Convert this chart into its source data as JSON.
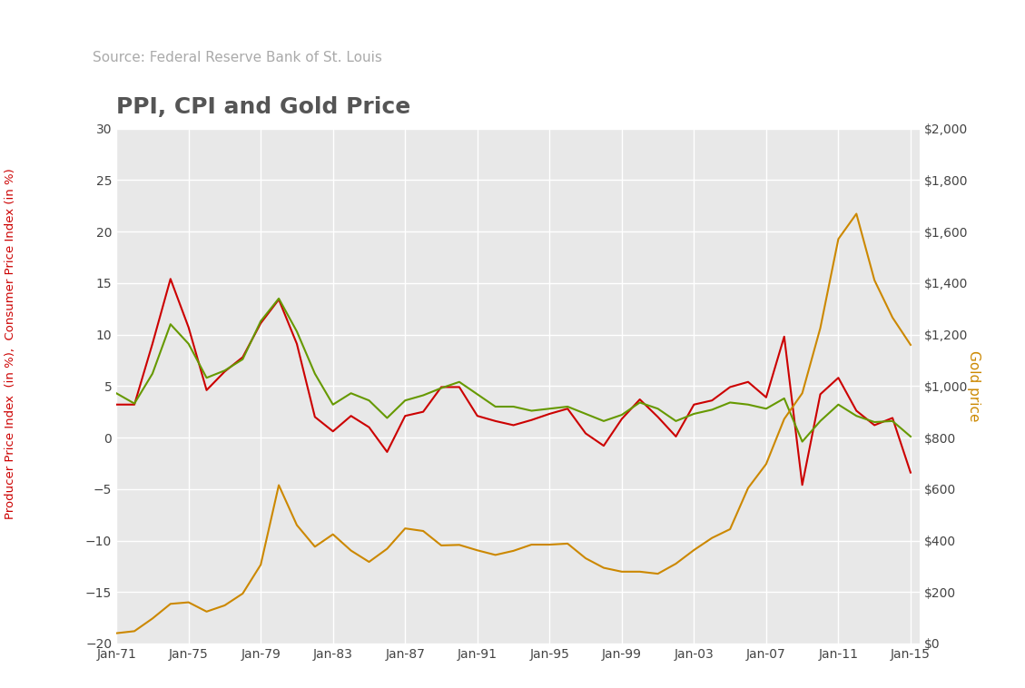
{
  "title": "PPI, CPI and Gold Price",
  "subtitle": "Source: Federal Reserve Bank of St. Louis",
  "ylabel_left": "Producer Price Index  (in %),  Consumer Price Index (in %)",
  "ylabel_right": "Gold price",
  "ylabel_left_color": "#cc0000",
  "ylabel_right_color": "#cc8800",
  "ylim_left": [
    -20,
    30
  ],
  "ylim_right": [
    0,
    2000
  ],
  "yticks_left": [
    -20,
    -15,
    -10,
    -5,
    0,
    5,
    10,
    15,
    20,
    25,
    30
  ],
  "yticks_right": [
    0,
    200,
    400,
    600,
    800,
    1000,
    1200,
    1400,
    1600,
    1800,
    2000
  ],
  "ytick_labels_right": [
    "$0",
    "$200",
    "$400",
    "$600",
    "$800",
    "$1,000",
    "$1,200",
    "$1,400",
    "$1,600",
    "$1,800",
    "$2,000"
  ],
  "xtick_labels": [
    "Jan-71",
    "Jan-75",
    "Jan-79",
    "Jan-83",
    "Jan-87",
    "Jan-91",
    "Jan-95",
    "Jan-99",
    "Jan-03",
    "Jan-07",
    "Jan-11",
    "Jan-15"
  ],
  "ppi_color": "#cc0000",
  "cpi_color": "#669900",
  "gold_color": "#cc8800",
  "background_color": "#e8e8e8",
  "plot_bg_color": "#e8e8e8",
  "title_color": "#555555",
  "subtitle_color": "#888888",
  "grid_color": "#ffffff",
  "years": [
    1971,
    1972,
    1973,
    1974,
    1975,
    1976,
    1977,
    1978,
    1979,
    1980,
    1981,
    1982,
    1983,
    1984,
    1985,
    1986,
    1987,
    1988,
    1989,
    1990,
    1991,
    1992,
    1993,
    1994,
    1995,
    1996,
    1997,
    1998,
    1999,
    2000,
    2001,
    2002,
    2003,
    2004,
    2005,
    2006,
    2007,
    2008,
    2009,
    2010,
    2011,
    2012,
    2013,
    2014,
    2015
  ],
  "ppi_annual": [
    3.2,
    3.2,
    9.1,
    15.4,
    10.7,
    4.6,
    6.4,
    7.8,
    11.1,
    13.4,
    9.1,
    2.0,
    0.6,
    2.1,
    1.0,
    -1.4,
    2.1,
    2.5,
    4.9,
    4.9,
    2.1,
    1.6,
    1.2,
    1.7,
    2.3,
    2.8,
    0.4,
    -0.8,
    1.8,
    3.7,
    2.0,
    0.1,
    3.2,
    3.6,
    4.9,
    5.4,
    3.9,
    9.8,
    -4.6,
    4.2,
    5.8,
    2.6,
    1.2,
    1.9,
    -3.4
  ],
  "cpi_annual": [
    4.3,
    3.3,
    6.2,
    11.0,
    9.1,
    5.8,
    6.5,
    7.6,
    11.3,
    13.5,
    10.3,
    6.2,
    3.2,
    4.3,
    3.6,
    1.9,
    3.6,
    4.1,
    4.8,
    5.4,
    4.2,
    3.0,
    3.0,
    2.6,
    2.8,
    3.0,
    2.3,
    1.6,
    2.2,
    3.4,
    2.8,
    1.6,
    2.3,
    2.7,
    3.4,
    3.2,
    2.8,
    3.8,
    -0.4,
    1.6,
    3.2,
    2.1,
    1.5,
    1.6,
    0.1
  ],
  "gold_annual": [
    40,
    48,
    97,
    154,
    160,
    124,
    148,
    194,
    306,
    615,
    460,
    376,
    424,
    361,
    317,
    368,
    447,
    437,
    381,
    383,
    362,
    344,
    360,
    384,
    384,
    388,
    331,
    294,
    279,
    279,
    271,
    310,
    363,
    410,
    444,
    604,
    697,
    872,
    972,
    1225,
    1571,
    1669,
    1411,
    1266,
    1160
  ]
}
